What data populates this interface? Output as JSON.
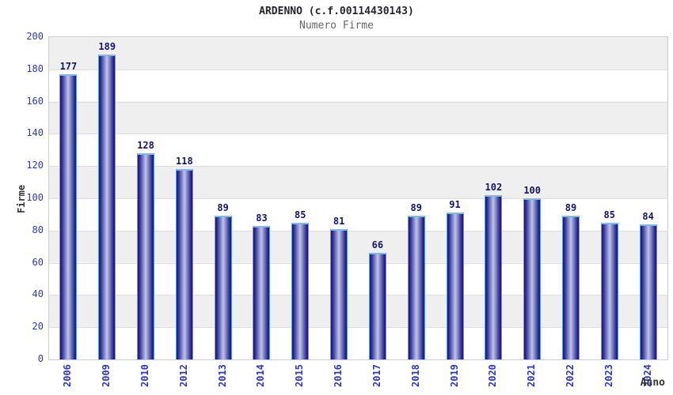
{
  "chart_data": {
    "type": "bar",
    "title": "ARDENNO (c.f.00114430143)",
    "subtitle": "Numero Firme",
    "xlabel": "Anno",
    "ylabel": "Firme",
    "categories": [
      "2006",
      "2009",
      "2010",
      "2012",
      "2013",
      "2014",
      "2015",
      "2016",
      "2017",
      "2018",
      "2019",
      "2020",
      "2021",
      "2022",
      "2023",
      "2024"
    ],
    "values": [
      177,
      189,
      128,
      118,
      89,
      83,
      85,
      81,
      66,
      89,
      91,
      102,
      100,
      89,
      85,
      84
    ],
    "ylim": [
      0,
      200
    ],
    "ytick_step": 20,
    "legend": "none",
    "grid": "alternating-horizontal-bands",
    "colors": {
      "title": "#26262e",
      "subtitle": "#666666",
      "axis_title": "#333333",
      "tick_label": "#2a35cc",
      "value_label": "#14146e",
      "bar_dark": "#17177c",
      "bar_mid": "#2a2a94",
      "bar_light": "#c0c5e6",
      "bar_border": "#5d9ce6",
      "bar_top": "#7db8f0",
      "band_gray": "#efefef",
      "band_white": "#ffffff",
      "grid_line": "#dddddd",
      "plot_border": "#cccccc"
    }
  }
}
